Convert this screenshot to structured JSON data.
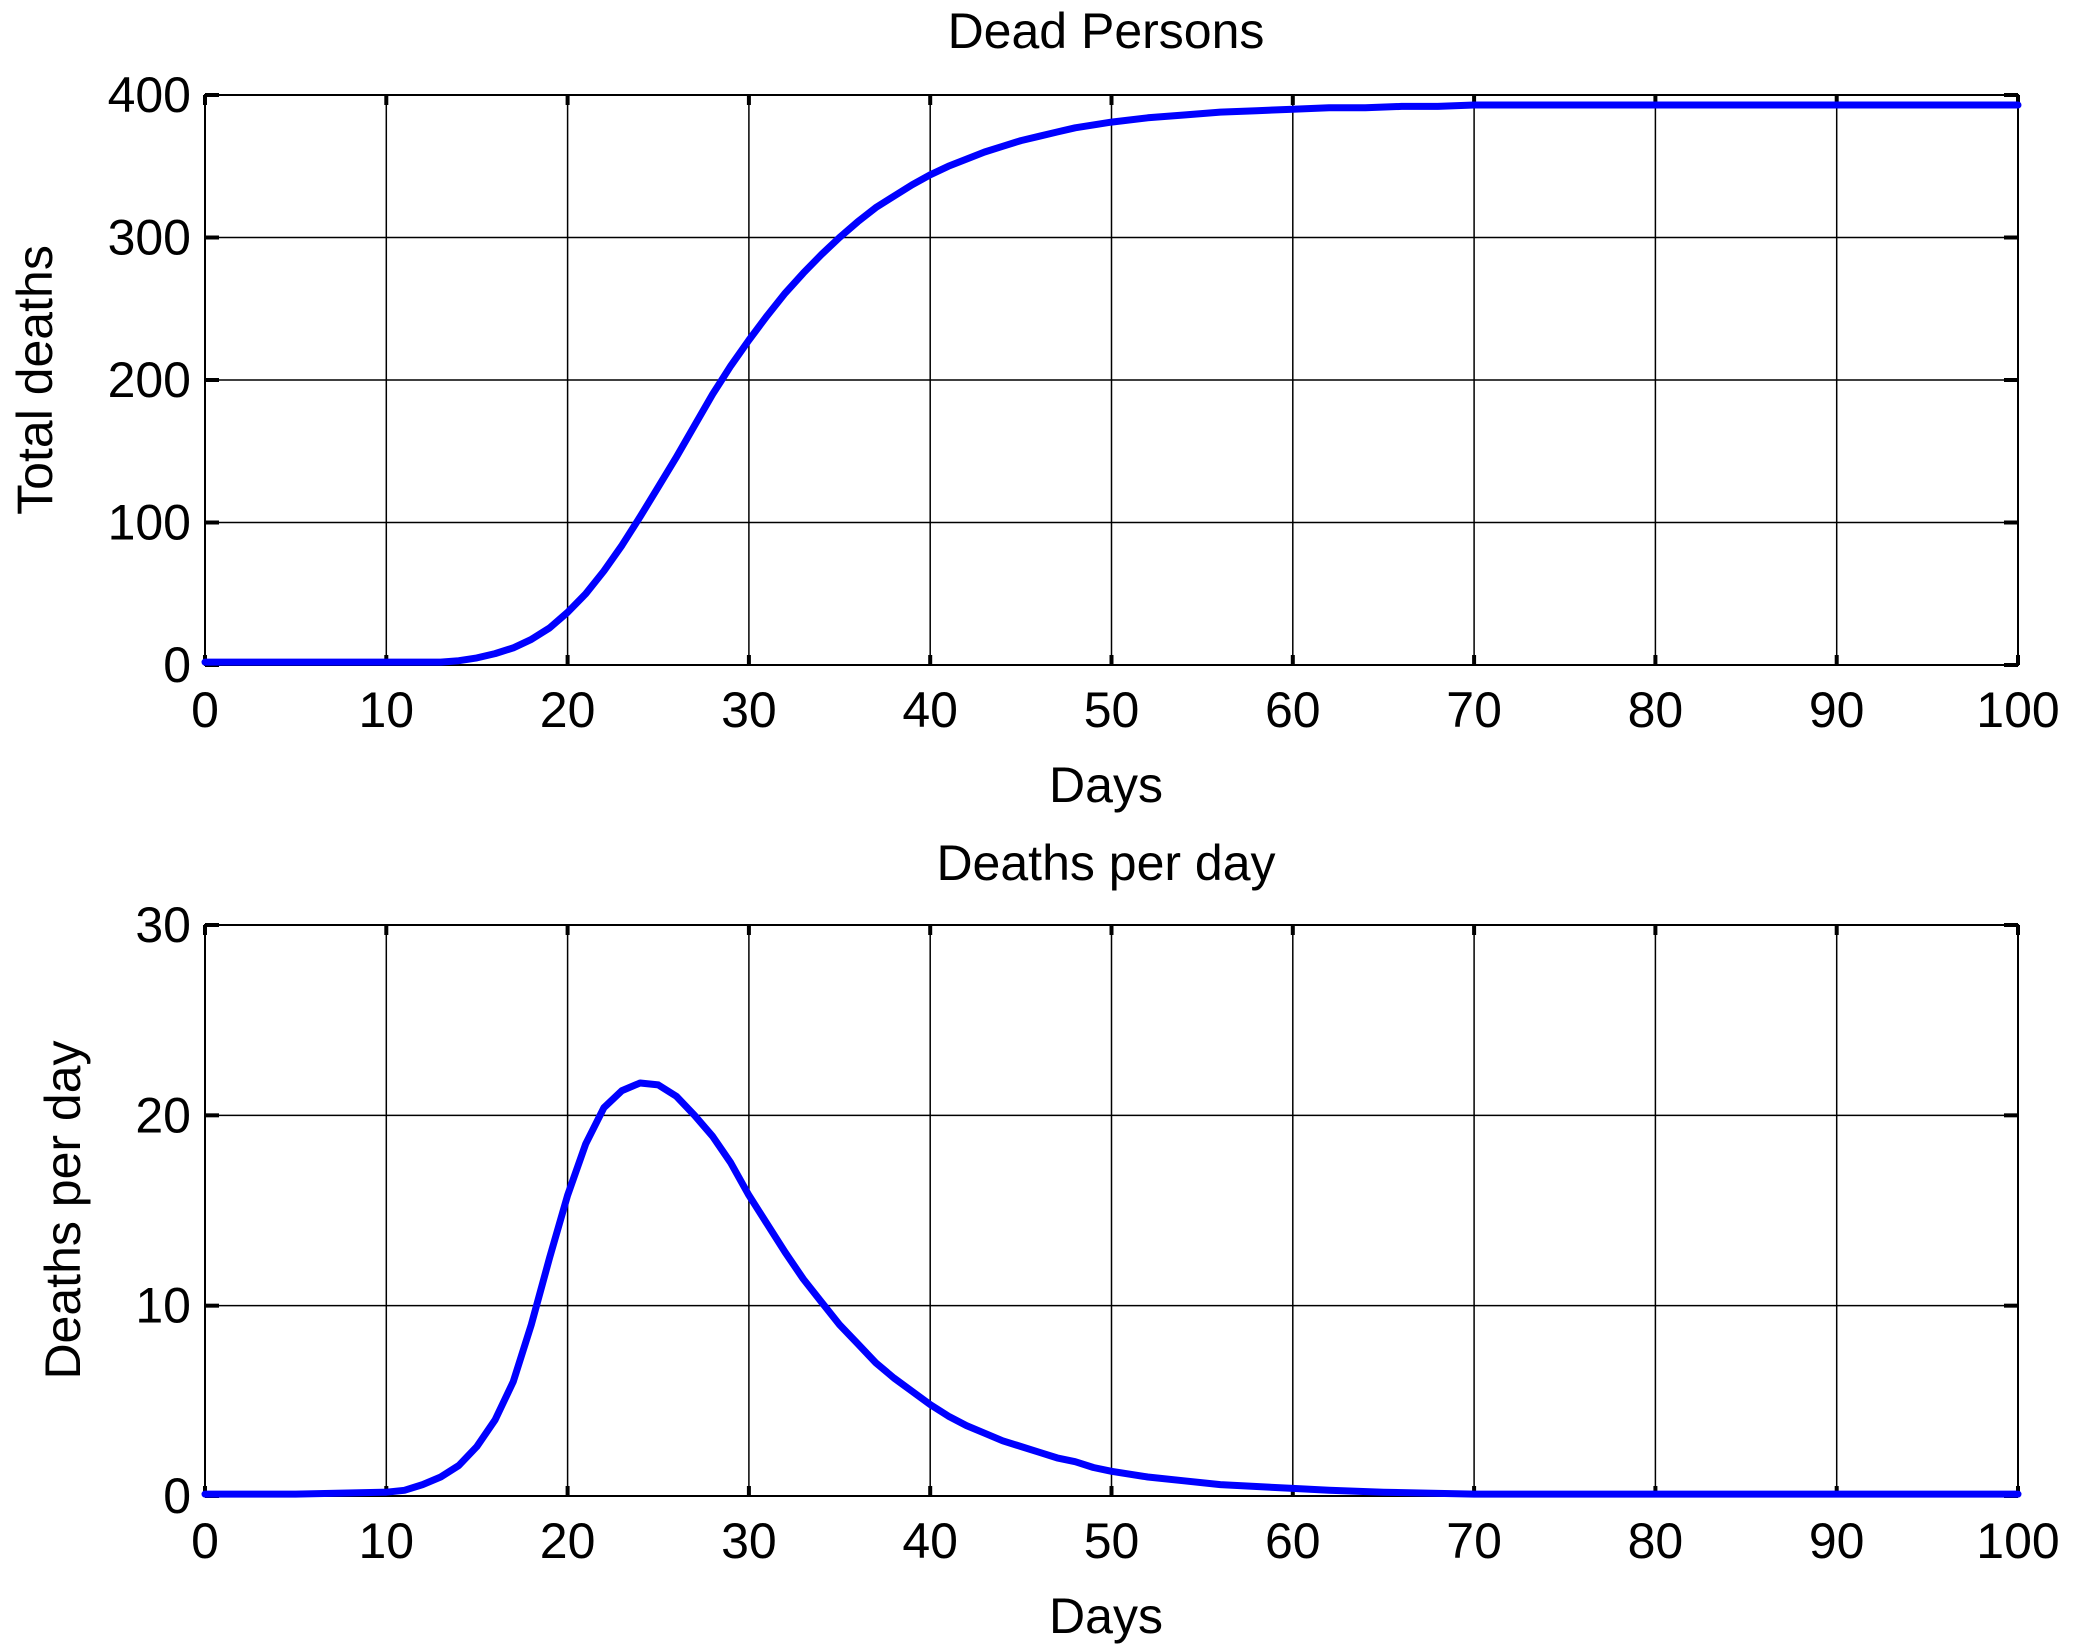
{
  "chart_data": [
    {
      "type": "line",
      "title": "Dead Persons",
      "xlabel": "Days",
      "ylabel": "Total deaths",
      "xlim": [
        0,
        100
      ],
      "ylim": [
        0,
        400
      ],
      "xticks": [
        "0",
        "10",
        "20",
        "30",
        "40",
        "50",
        "60",
        "70",
        "80",
        "90",
        "100"
      ],
      "yticks": [
        "0",
        "100",
        "200",
        "300",
        "400"
      ],
      "grid": true,
      "series": [
        {
          "color": "#0000ff",
          "x": [
            0,
            5,
            10,
            12,
            13,
            14,
            15,
            16,
            17,
            18,
            19,
            20,
            21,
            22,
            23,
            24,
            25,
            26,
            27,
            28,
            29,
            30,
            31,
            32,
            33,
            34,
            35,
            36,
            37,
            38,
            39,
            40,
            41,
            42,
            43,
            44,
            45,
            46,
            47,
            48,
            49,
            50,
            52,
            54,
            56,
            58,
            60,
            62,
            64,
            66,
            68,
            70,
            75,
            80,
            85,
            90,
            95,
            100
          ],
          "y": [
            2,
            2,
            2,
            2,
            2,
            3,
            5,
            8,
            12,
            18,
            26,
            37,
            50,
            66,
            84,
            104,
            125,
            146,
            168,
            190,
            210,
            228,
            245,
            261,
            275,
            288,
            300,
            311,
            321,
            329,
            337,
            344,
            350,
            355,
            360,
            364,
            368,
            371,
            374,
            377,
            379,
            381,
            384,
            386,
            388,
            389,
            390,
            391,
            391,
            392,
            392,
            393,
            393,
            393,
            393,
            393,
            393,
            393
          ]
        }
      ]
    },
    {
      "type": "line",
      "title": "Deaths per day",
      "xlabel": "Days",
      "ylabel": "Deaths per day",
      "xlim": [
        0,
        100
      ],
      "ylim": [
        0,
        30
      ],
      "xticks": [
        "0",
        "10",
        "20",
        "30",
        "40",
        "50",
        "60",
        "70",
        "80",
        "90",
        "100"
      ],
      "yticks": [
        "0",
        "10",
        "20",
        "30"
      ],
      "grid": true,
      "series": [
        {
          "color": "#0000ff",
          "x": [
            0,
            5,
            10,
            11,
            12,
            13,
            14,
            15,
            16,
            17,
            18,
            19,
            20,
            21,
            22,
            23,
            24,
            25,
            26,
            27,
            28,
            29,
            30,
            31,
            32,
            33,
            34,
            35,
            36,
            37,
            38,
            39,
            40,
            41,
            42,
            43,
            44,
            45,
            46,
            47,
            48,
            49,
            50,
            52,
            54,
            56,
            58,
            60,
            62,
            65,
            70,
            80,
            90,
            100
          ],
          "y": [
            0.1,
            0.1,
            0.2,
            0.3,
            0.6,
            1.0,
            1.6,
            2.6,
            4.0,
            6.0,
            9.0,
            12.5,
            15.8,
            18.5,
            20.4,
            21.3,
            21.7,
            21.6,
            21.0,
            20.0,
            18.9,
            17.5,
            15.8,
            14.3,
            12.8,
            11.4,
            10.2,
            9.0,
            8.0,
            7.0,
            6.2,
            5.5,
            4.8,
            4.2,
            3.7,
            3.3,
            2.9,
            2.6,
            2.3,
            2.0,
            1.8,
            1.5,
            1.3,
            1.0,
            0.8,
            0.6,
            0.5,
            0.4,
            0.3,
            0.2,
            0.1,
            0.1,
            0.1,
            0.1
          ]
        }
      ]
    }
  ]
}
